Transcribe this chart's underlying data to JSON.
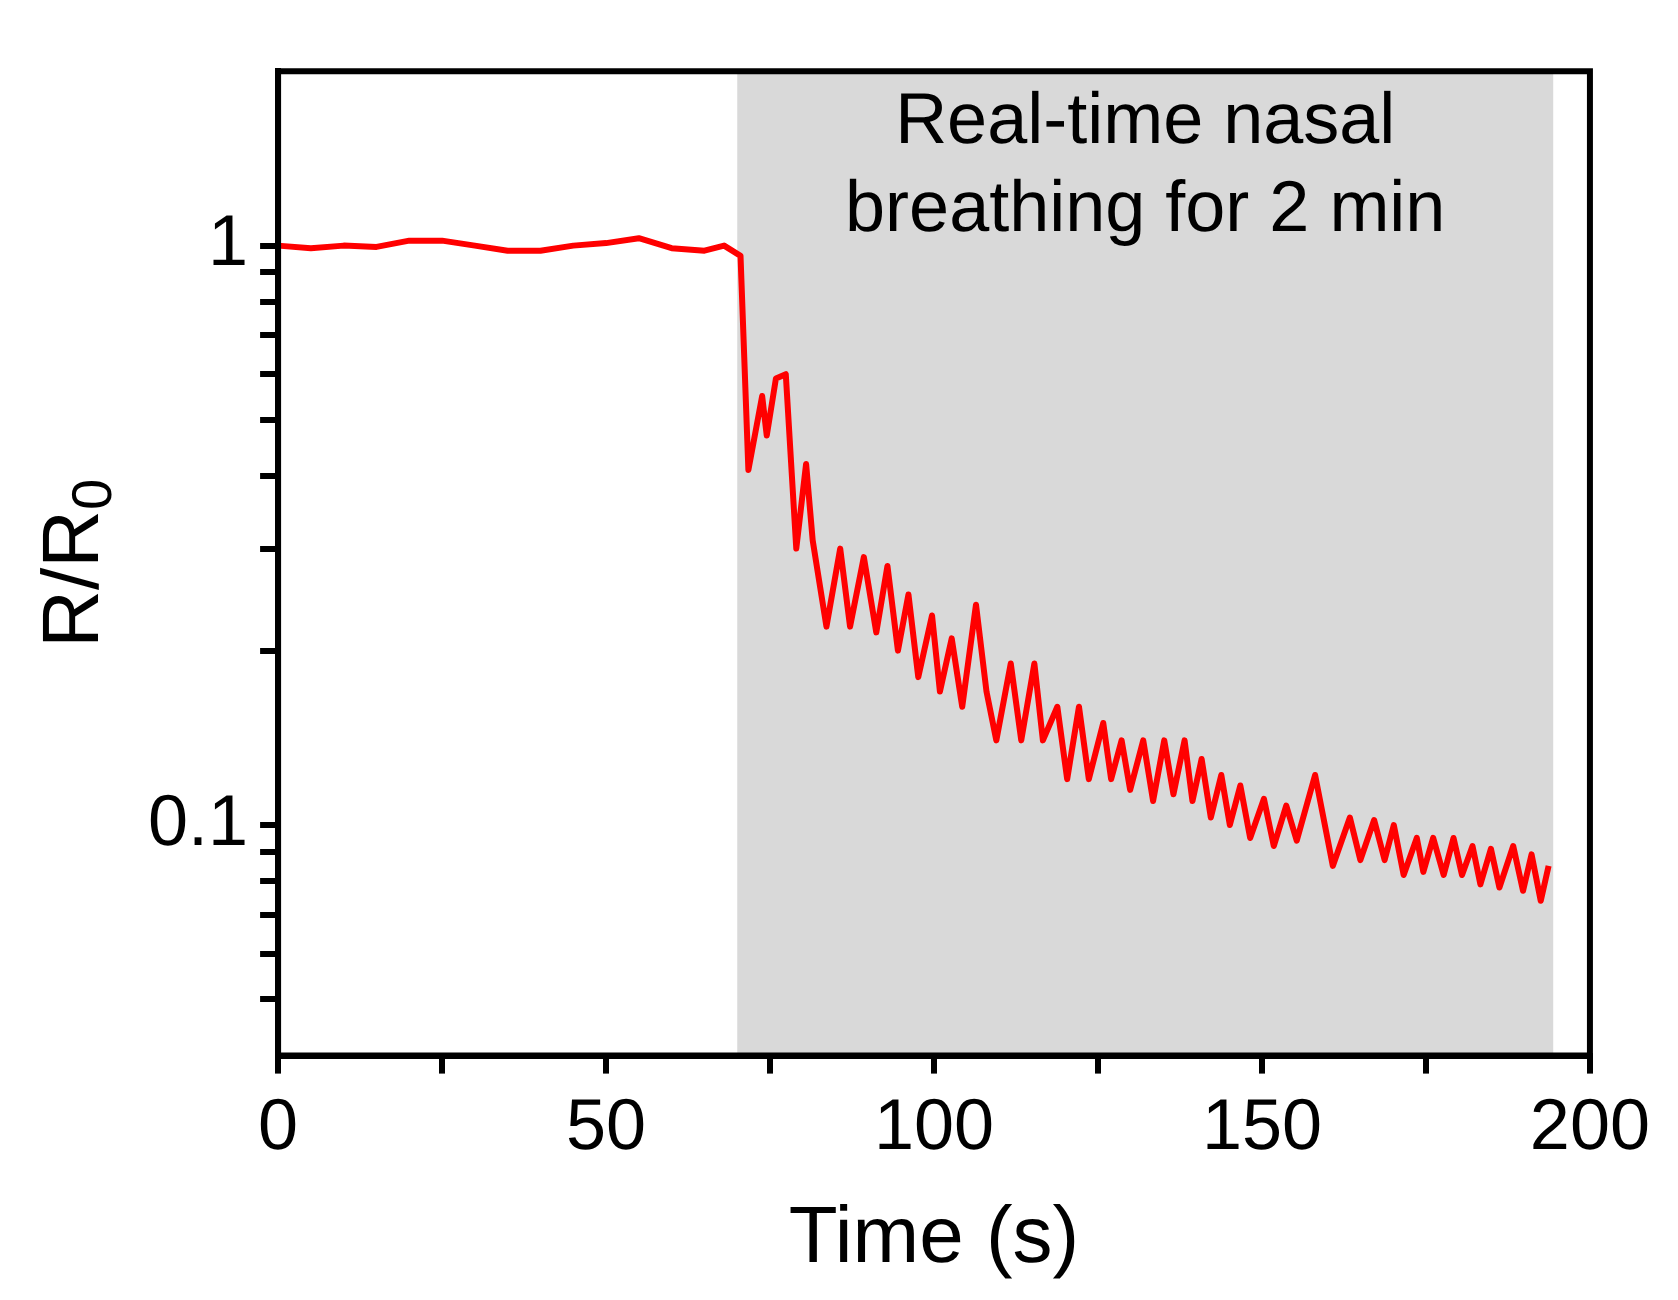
{
  "chart_data": {
    "type": "line",
    "xlabel": "Time (s)",
    "ylabel": "R/R$_{0}$",
    "log": "y",
    "grid": false,
    "legend": false,
    "marker": "none",
    "line_style": "solid",
    "xlim": [
      0,
      200
    ],
    "xticks": [
      0,
      {
        "value": 25,
        "label": null
      },
      50,
      {
        "value": 75,
        "label": null
      },
      100,
      {
        "value": 125,
        "label": null
      },
      150,
      {
        "value": 175,
        "label": null
      },
      200
    ],
    "ylim": [
      0.04,
      2
    ],
    "yticks": [
      {
        "value": 0.05,
        "label": null
      },
      {
        "value": 0.06,
        "label": null
      },
      {
        "value": 0.07,
        "label": null
      },
      {
        "value": 0.08,
        "label": null
      },
      {
        "value": 0.09,
        "label": null
      },
      0.1,
      {
        "value": 0.2,
        "label": null
      },
      {
        "value": 0.3,
        "label": null
      },
      {
        "value": 0.4,
        "label": null
      },
      {
        "value": 0.5,
        "label": null
      },
      {
        "value": 0.6,
        "label": null
      },
      {
        "value": 0.7,
        "label": null
      },
      {
        "value": 0.8,
        "label": null
      },
      {
        "value": 0.9,
        "label": null
      },
      1
    ],
    "bands": [
      {
        "axis": "x",
        "from": 70,
        "to": 194.4,
        "label": "Real-time nasal breathing for 2 min",
        "color": "#d9d9d9"
      }
    ],
    "series": [
      {
        "color": "#ff0000",
        "x": [
          0,
          5,
          10,
          15,
          20,
          25,
          30,
          35,
          40,
          45,
          50,
          55,
          60,
          65,
          68,
          70.5,
          71.7,
          73.8,
          74.5,
          75.9,
          77.4,
          79.0,
          80.5,
          81.5,
          83.6,
          85.7,
          87.2,
          89.3,
          91.2,
          92.9,
          94.5,
          96.1,
          97.6,
          99.7,
          100.9,
          102.7,
          104.3,
          106.4,
          108.0,
          109.5,
          111.7,
          113.3,
          115.3,
          116.6,
          118.8,
          120.3,
          122.1,
          123.6,
          125.8,
          127.0,
          128.6,
          129.9,
          131.9,
          133.4,
          135.1,
          136.5,
          138.2,
          139.4,
          140.8,
          142.2,
          143.8,
          145.1,
          146.7,
          148.2,
          150.3,
          151.8,
          153.7,
          155.3,
          158.1,
          160.8,
          163.4,
          165.0,
          167.1,
          168.7,
          170.1,
          171.6,
          173.6,
          174.6,
          176.1,
          177.7,
          179.2,
          180.5,
          182.1,
          183.3,
          184.9,
          186.2,
          188.3,
          189.8,
          191.1,
          192.5,
          193.7
        ],
        "values": [
          1.0,
          0.99,
          1.0,
          0.995,
          1.02,
          1.02,
          1.0,
          0.98,
          0.98,
          1.0,
          1.01,
          1.03,
          0.99,
          0.98,
          1.0,
          0.96,
          0.41,
          0.55,
          0.47,
          0.59,
          0.6,
          0.3,
          0.42,
          0.31,
          0.22,
          0.3,
          0.22,
          0.29,
          0.215,
          0.28,
          0.2,
          0.25,
          0.18,
          0.23,
          0.17,
          0.21,
          0.16,
          0.24,
          0.17,
          0.14,
          0.19,
          0.14,
          0.19,
          0.14,
          0.16,
          0.12,
          0.16,
          0.12,
          0.15,
          0.12,
          0.14,
          0.115,
          0.14,
          0.11,
          0.14,
          0.113,
          0.14,
          0.11,
          0.13,
          0.103,
          0.122,
          0.1,
          0.117,
          0.095,
          0.111,
          0.092,
          0.108,
          0.094,
          0.122,
          0.085,
          0.103,
          0.087,
          0.102,
          0.087,
          0.1,
          0.082,
          0.095,
          0.083,
          0.095,
          0.082,
          0.095,
          0.082,
          0.092,
          0.079,
          0.091,
          0.078,
          0.092,
          0.077,
          0.089,
          0.074,
          0.085
        ]
      }
    ]
  }
}
